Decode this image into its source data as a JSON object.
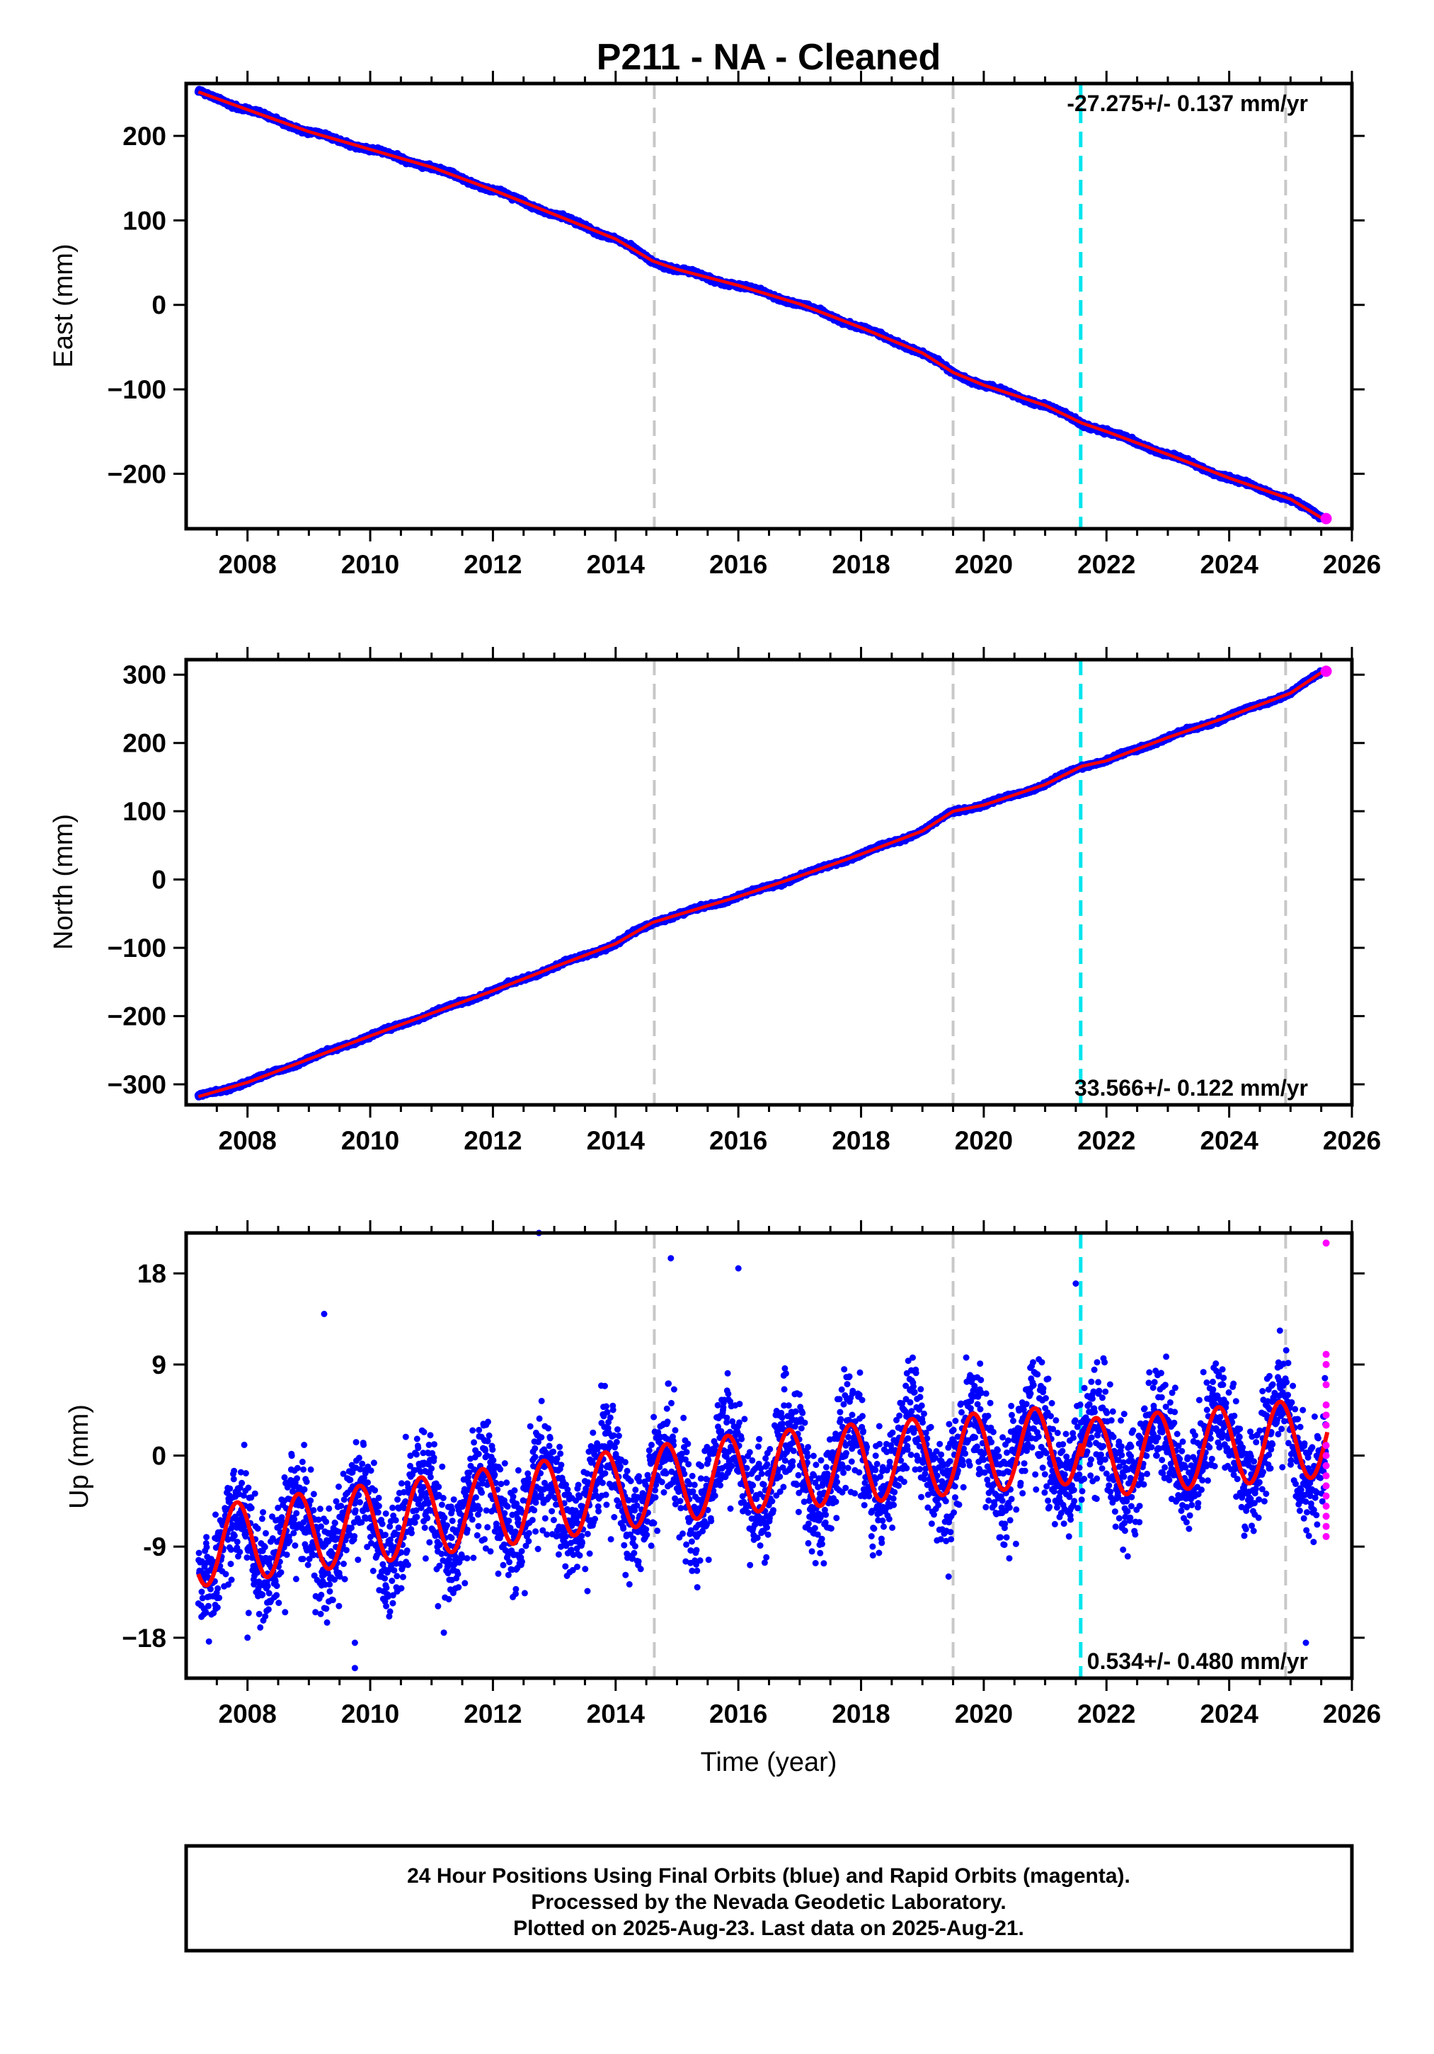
{
  "title": "P211  - NA - Cleaned",
  "colors": {
    "final_orbits": "#0000ff",
    "rapid_orbits": "#ff00ff",
    "model": "#ff0000",
    "equipment_change": "#c8c8c8",
    "earthquake": "#00e5ee",
    "frame": "#000000"
  },
  "x_axis": {
    "label": "Time (year)",
    "range": [
      2007.0,
      2026.0
    ],
    "ticks": [
      2008,
      2010,
      2012,
      2014,
      2016,
      2018,
      2020,
      2022,
      2024,
      2026
    ],
    "tick_labels": [
      "2008",
      "2010",
      "2012",
      "2014",
      "2016",
      "2018",
      "2020",
      "2022",
      "2024",
      "2026"
    ]
  },
  "event_lines": {
    "equipment": [
      2014.63,
      2019.5,
      2024.92
    ],
    "earthquake": [
      2021.58
    ]
  },
  "chart_data": [
    {
      "type": "scatter",
      "name": "east",
      "ylabel": "East (mm)",
      "ylim": [
        -265,
        262
      ],
      "yticks": [
        200,
        100,
        0,
        -100,
        -200
      ],
      "ytick_labels": [
        "200",
        "100",
        "0",
        "−100",
        "−200"
      ],
      "rate_text": "-27.275+/- 0.137 mm/yr",
      "rate_position": "top-right",
      "series": [
        {
          "name": "final",
          "color": "#0000ff",
          "x": [
            2007.2,
            2008.0,
            2009.0,
            2010.0,
            2011.0,
            2012.0,
            2013.0,
            2014.0,
            2014.6,
            2015.0,
            2016.0,
            2017.0,
            2018.0,
            2019.0,
            2019.5,
            2020.0,
            2021.0,
            2021.6,
            2022.0,
            2023.0,
            2024.0,
            2025.0,
            2025.5
          ],
          "y": [
            252,
            231,
            205,
            184,
            163,
            136,
            107,
            78,
            52,
            42,
            23,
            1,
            -27,
            -57,
            -80,
            -95,
            -119,
            -140,
            -150,
            -177,
            -205,
            -230,
            -252
          ]
        }
      ],
      "rapid_last": [
        2025.58,
        -253
      ]
    },
    {
      "type": "scatter",
      "name": "north",
      "ylabel": "North (mm)",
      "ylim": [
        -330,
        322
      ],
      "yticks": [
        300,
        200,
        100,
        0,
        -100,
        -200,
        -300
      ],
      "ytick_labels": [
        "300",
        "200",
        "100",
        "0",
        "−100",
        "−200",
        "−300"
      ],
      "rate_text": "33.566+/- 0.122 mm/yr",
      "rate_position": "bottom-right",
      "series": [
        {
          "name": "final",
          "color": "#0000ff",
          "x": [
            2007.2,
            2008.0,
            2009.0,
            2010.0,
            2011.0,
            2012.0,
            2013.0,
            2014.0,
            2014.6,
            2015.0,
            2016.0,
            2017.0,
            2018.0,
            2019.0,
            2019.5,
            2020.0,
            2021.0,
            2021.6,
            2022.0,
            2023.0,
            2024.0,
            2025.0,
            2025.5
          ],
          "y": [
            -318,
            -297,
            -263,
            -229,
            -196,
            -163,
            -128,
            -94,
            -63,
            -52,
            -25,
            5,
            37,
            71,
            100,
            109,
            139,
            166,
            174,
            208,
            239,
            273,
            303
          ]
        }
      ],
      "rapid_last": [
        2025.58,
        305
      ]
    },
    {
      "type": "scatter",
      "name": "up",
      "ylabel": "Up (mm)",
      "ylim": [
        -22,
        22
      ],
      "yticks": [
        18,
        9,
        0,
        -9,
        -18
      ],
      "ytick_labels": [
        "18",
        "9",
        "0",
        "-9",
        "−18"
      ],
      "rate_text": "0.534+/- 0.480 mm/yr",
      "rate_position": "bottom-right",
      "model": {
        "start": 2007.2,
        "end": 2025.6,
        "offset": -3.2,
        "rate": 0.534,
        "annual_amplitude": 3.9,
        "peak_phase": 0.83,
        "step_at": 2021.58,
        "step": -1.5
      },
      "scatter_spread": 3.8,
      "rapid": {
        "x": 2025.58,
        "y": [
          21,
          10,
          9,
          7,
          5,
          4,
          3,
          1,
          0,
          -1,
          -2,
          -3,
          -4,
          -5,
          -6,
          -7,
          -8
        ]
      },
      "outliers": {
        "x": [
          2012.75,
          2009.75,
          2009.25,
          2014.9,
          2016.0,
          2021.5,
          2009.75,
          2011.2,
          2008.0,
          2025.25
        ],
        "y": [
          22,
          -21,
          14,
          19.5,
          18.5,
          17,
          -18.5,
          -17.5,
          -18,
          -18.5
        ]
      }
    }
  ],
  "footer": {
    "line1": "24 Hour Positions Using Final Orbits (blue) and Rapid Orbits (magenta).",
    "line2": "Processed by the Nevada Geodetic Laboratory.",
    "line3": "Plotted on 2025-Aug-23. Last data on 2025-Aug-21."
  }
}
